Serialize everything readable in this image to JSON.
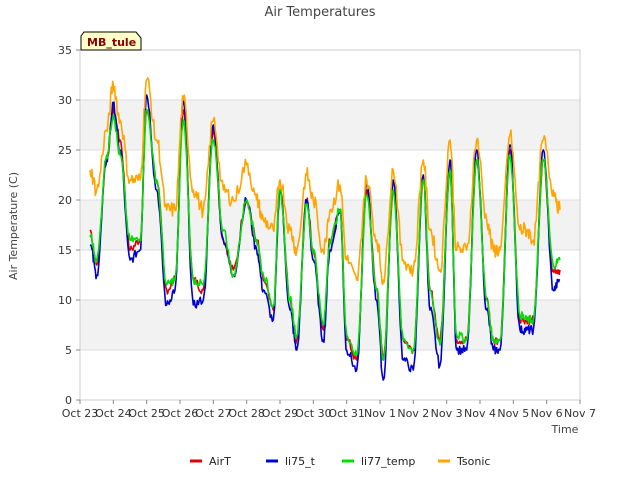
{
  "chart_data": {
    "type": "line",
    "title": "Air Temperatures",
    "xlabel": "Time",
    "ylabel": "Air Temperature (C)",
    "ylim": [
      0,
      35
    ],
    "yticks": [
      0,
      5,
      10,
      15,
      20,
      25,
      30,
      35
    ],
    "xlim": [
      0,
      15
    ],
    "xtick_labels": [
      "Oct 23",
      "Oct 24",
      "Oct 25",
      "Oct 26",
      "Oct 27",
      "Oct 28",
      "Oct 29",
      "Oct 30",
      "Oct 31",
      "Nov 1",
      "Nov 2",
      "Nov 3",
      "Nov 4",
      "Nov 5",
      "Nov 6",
      "Nov 7"
    ],
    "station_label": "MB_tule",
    "grid": true,
    "banded_background": true,
    "legend_position": "bottom",
    "series": [
      {
        "name": "AirT",
        "color": "#dd0000",
        "x": [
          0.3,
          0.5,
          0.8,
          1.0,
          1.2,
          1.5,
          1.8,
          2.0,
          2.3,
          2.6,
          2.85,
          3.1,
          3.4,
          3.7,
          4.0,
          4.3,
          4.6,
          5.0,
          5.3,
          5.5,
          5.8,
          6.0,
          6.3,
          6.5,
          6.8,
          7.0,
          7.3,
          7.5,
          7.8,
          8.0,
          8.3,
          8.6,
          8.9,
          9.1,
          9.4,
          9.7,
          10.0,
          10.3,
          10.5,
          10.8,
          11.1,
          11.3,
          11.6,
          11.9,
          12.2,
          12.4,
          12.6,
          12.9,
          13.2,
          13.4,
          13.6,
          13.9,
          14.2,
          14.4
        ],
        "y": [
          17,
          13.5,
          24,
          29,
          26,
          15,
          16,
          29,
          22,
          11,
          12,
          29,
          12,
          11,
          27,
          16,
          13,
          20,
          16,
          12,
          9,
          21,
          10,
          6,
          20,
          15,
          7,
          16,
          19,
          6,
          4,
          21,
          11,
          4,
          21,
          6,
          5,
          22,
          11,
          6,
          23,
          6,
          6,
          24,
          10,
          6,
          6,
          25,
          8,
          8,
          8,
          24,
          13,
          13
        ]
      },
      {
        "name": "li75_t",
        "color": "#0000cc",
        "x": [
          0.3,
          0.5,
          0.8,
          1.0,
          1.2,
          1.5,
          1.8,
          2.0,
          2.3,
          2.6,
          2.85,
          3.1,
          3.4,
          3.7,
          4.0,
          4.3,
          4.6,
          5.0,
          5.3,
          5.5,
          5.8,
          6.0,
          6.3,
          6.5,
          6.8,
          7.0,
          7.3,
          7.5,
          7.8,
          8.0,
          8.3,
          8.6,
          8.9,
          9.1,
          9.4,
          9.7,
          10.0,
          10.3,
          10.5,
          10.8,
          11.1,
          11.3,
          11.6,
          11.9,
          12.2,
          12.4,
          12.6,
          12.9,
          13.2,
          13.4,
          13.6,
          13.9,
          14.2,
          14.4
        ],
        "y": [
          15.5,
          12.5,
          24,
          29.5,
          25,
          14,
          15,
          30.5,
          21,
          9.5,
          11,
          30,
          9.5,
          10,
          27.5,
          16,
          12.5,
          20,
          15,
          11,
          8,
          21,
          9,
          5,
          20,
          14,
          6,
          15,
          19,
          5,
          3,
          21.5,
          10,
          2,
          22,
          4,
          3,
          22.5,
          9,
          3.5,
          24,
          5,
          5,
          25,
          9,
          5,
          5,
          25.5,
          7,
          7,
          7,
          25,
          11,
          12
        ]
      },
      {
        "name": "li77_temp",
        "color": "#00dd00",
        "x": [
          0.3,
          0.5,
          0.8,
          1.0,
          1.2,
          1.5,
          1.8,
          2.0,
          2.3,
          2.6,
          2.85,
          3.1,
          3.4,
          3.7,
          4.0,
          4.3,
          4.6,
          5.0,
          5.3,
          5.5,
          5.8,
          6.0,
          6.3,
          6.5,
          6.8,
          7.0,
          7.3,
          7.5,
          7.8,
          8.0,
          8.3,
          8.6,
          8.9,
          9.1,
          9.4,
          9.7,
          10.0,
          10.3,
          10.5,
          10.8,
          11.1,
          11.3,
          11.6,
          11.9,
          12.2,
          12.4,
          12.6,
          12.9,
          13.2,
          13.4,
          13.6,
          13.9,
          14.2,
          14.4
        ],
        "y": [
          16.5,
          14,
          24.5,
          28.5,
          24.5,
          16,
          16,
          29,
          22,
          11.5,
          12,
          28,
          12,
          11.5,
          26,
          17,
          12.5,
          20,
          16,
          12.5,
          9.5,
          21,
          10,
          6.5,
          19.5,
          15,
          7.5,
          16,
          19,
          6.5,
          4.5,
          20.5,
          11,
          4,
          21,
          6,
          5,
          22,
          11,
          5.5,
          23,
          6.5,
          6,
          24,
          10,
          6,
          6,
          24.5,
          8.5,
          8,
          8,
          24,
          13.5,
          14
        ]
      },
      {
        "name": "Tsonic",
        "color": "#ffa500",
        "x": [
          0.3,
          0.5,
          0.8,
          1.0,
          1.2,
          1.5,
          1.8,
          2.0,
          2.3,
          2.6,
          2.85,
          3.1,
          3.4,
          3.7,
          4.0,
          4.3,
          4.6,
          5.0,
          5.3,
          5.5,
          5.8,
          6.0,
          6.3,
          6.5,
          6.8,
          7.0,
          7.3,
          7.5,
          7.8,
          8.0,
          8.3,
          8.6,
          8.9,
          9.1,
          9.4,
          9.7,
          10.0,
          10.3,
          10.5,
          10.8,
          11.1,
          11.3,
          11.6,
          11.9,
          12.2,
          12.4,
          12.6,
          12.9,
          13.2,
          13.4,
          13.6,
          13.9,
          14.2,
          14.4
        ],
        "y": [
          23,
          21,
          27,
          31.5,
          28,
          22,
          22,
          32,
          26,
          19,
          19,
          30,
          21,
          19,
          28,
          21,
          20,
          23.5,
          20,
          18,
          17,
          22,
          17,
          15,
          22.5,
          20,
          15,
          19,
          21.5,
          14,
          12,
          22,
          16,
          12,
          23,
          14,
          13,
          24,
          17,
          13,
          26,
          15,
          15,
          26,
          18,
          15,
          15,
          26.5,
          17,
          17,
          16,
          26,
          21,
          19
        ]
      }
    ]
  }
}
